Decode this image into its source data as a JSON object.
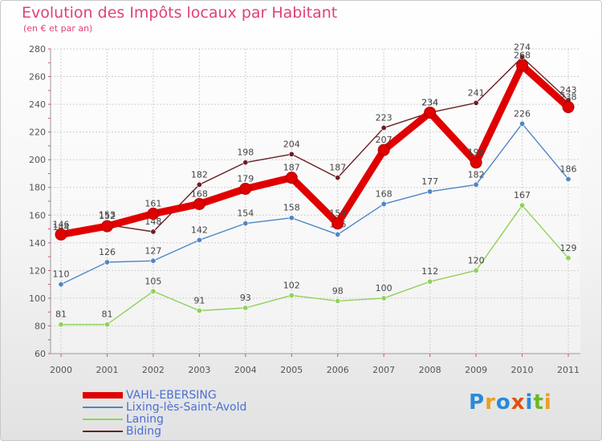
{
  "chart_data": {
    "type": "line",
    "title": "Evolution des Impôts locaux par Habitant",
    "subtitle": "(en € et par an)",
    "categories": [
      "2000",
      "2001",
      "2002",
      "2003",
      "2004",
      "2005",
      "2006",
      "2007",
      "2008",
      "2009",
      "2010",
      "2011"
    ],
    "ylim": [
      60,
      280
    ],
    "yticks": [
      60,
      80,
      100,
      120,
      140,
      160,
      180,
      200,
      220,
      240,
      260,
      280
    ],
    "series": [
      {
        "name": "Biding",
        "color": "#6b1f24",
        "values": [
          144,
          153,
          148,
          182,
          198,
          204,
          187,
          223,
          234,
          241,
          274,
          243
        ]
      },
      {
        "name": "Lixing-lès-Saint-Avold",
        "color": "#4f86c6",
        "values": [
          110,
          126,
          127,
          142,
          154,
          158,
          146,
          168,
          177,
          182,
          226,
          186
        ]
      },
      {
        "name": "Laning",
        "color": "#8fd15a",
        "values": [
          81,
          81,
          105,
          91,
          93,
          102,
          98,
          100,
          112,
          120,
          167,
          129
        ]
      },
      {
        "name": "VAHL-EBERSING",
        "color": "#e00000",
        "values": [
          146,
          152,
          161,
          168,
          179,
          187,
          154,
          207,
          234,
          198,
          268,
          238
        ]
      }
    ],
    "legend": [
      {
        "name": "VAHL-EBERSING",
        "color": "#e00000"
      },
      {
        "name": "Lixing-lès-Saint-Avold",
        "color": "#4f86c6"
      },
      {
        "name": "Laning",
        "color": "#8fd15a"
      },
      {
        "name": "Biding",
        "color": "#6b1f24"
      }
    ]
  },
  "logo": {
    "text": "Proxiti",
    "letters": [
      {
        "ch": "P",
        "color": "#2a8ad8"
      },
      {
        "ch": "r",
        "color": "#e8a020"
      },
      {
        "ch": "o",
        "color": "#2a8ad8"
      },
      {
        "ch": "x",
        "color": "#e05010"
      },
      {
        "ch": "i",
        "color": "#2a8ad8"
      },
      {
        "ch": "t",
        "color": "#6ab82a"
      },
      {
        "ch": "i",
        "color": "#e8a020"
      }
    ]
  }
}
